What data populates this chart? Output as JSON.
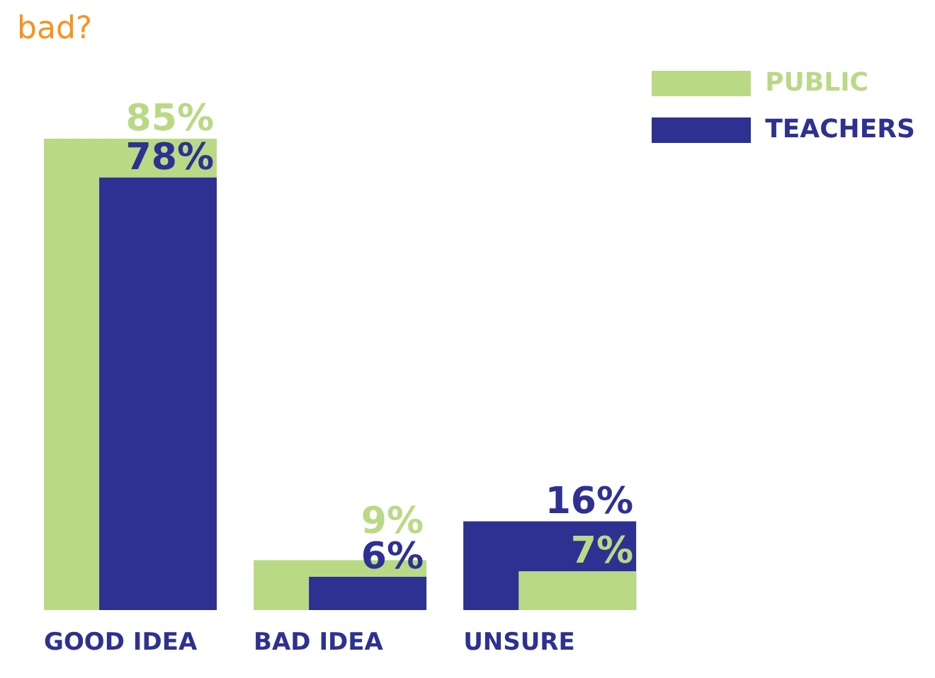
{
  "chart_data": {
    "type": "bar",
    "title": "bad?",
    "categories": [
      "GOOD IDEA",
      "BAD IDEA",
      "UNSURE"
    ],
    "series": [
      {
        "name": "PUBLIC",
        "color": "#bad985",
        "values": [
          85,
          9,
          7
        ],
        "value_labels": [
          "85%",
          "9%",
          "7%"
        ]
      },
      {
        "name": "TEACHERS",
        "color": "#2e3192",
        "values": [
          78,
          6,
          16
        ],
        "value_labels": [
          "78%",
          "6%",
          "16%"
        ]
      }
    ],
    "legend": "top right",
    "grid": false
  }
}
